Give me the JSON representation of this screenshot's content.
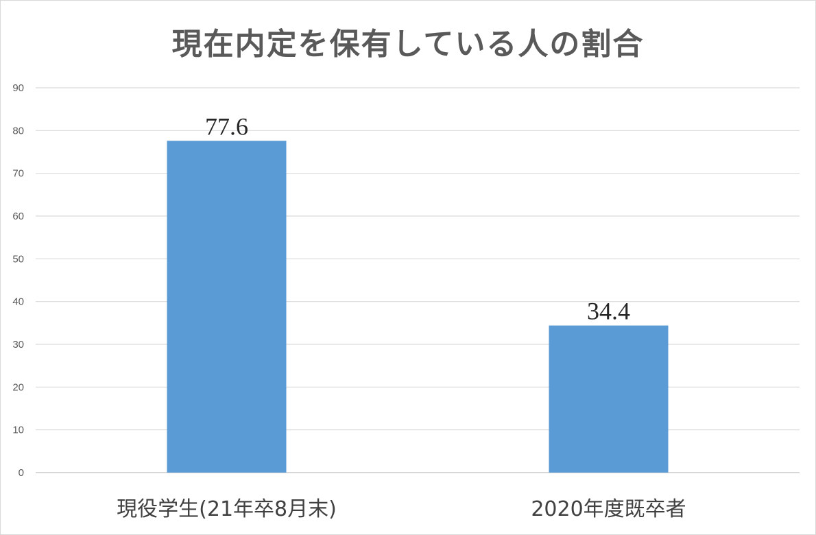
{
  "chart_data": {
    "type": "bar",
    "title": "現在内定を保有している人の割合",
    "categories": [
      "現役学生(21年卒8月末)",
      "2020年度既卒者"
    ],
    "values": [
      77.6,
      34.4
    ],
    "data_labels": [
      "77.6",
      "34.4"
    ],
    "xlabel": "",
    "ylabel": "",
    "ylim": [
      0,
      90
    ],
    "yticks": [
      0,
      10,
      20,
      30,
      40,
      50,
      60,
      70,
      80,
      90
    ],
    "grid": true,
    "legend": "none",
    "colors": {
      "bar": "#5B9BD5",
      "grid": "#d9d9d9",
      "title": "#595959"
    }
  }
}
